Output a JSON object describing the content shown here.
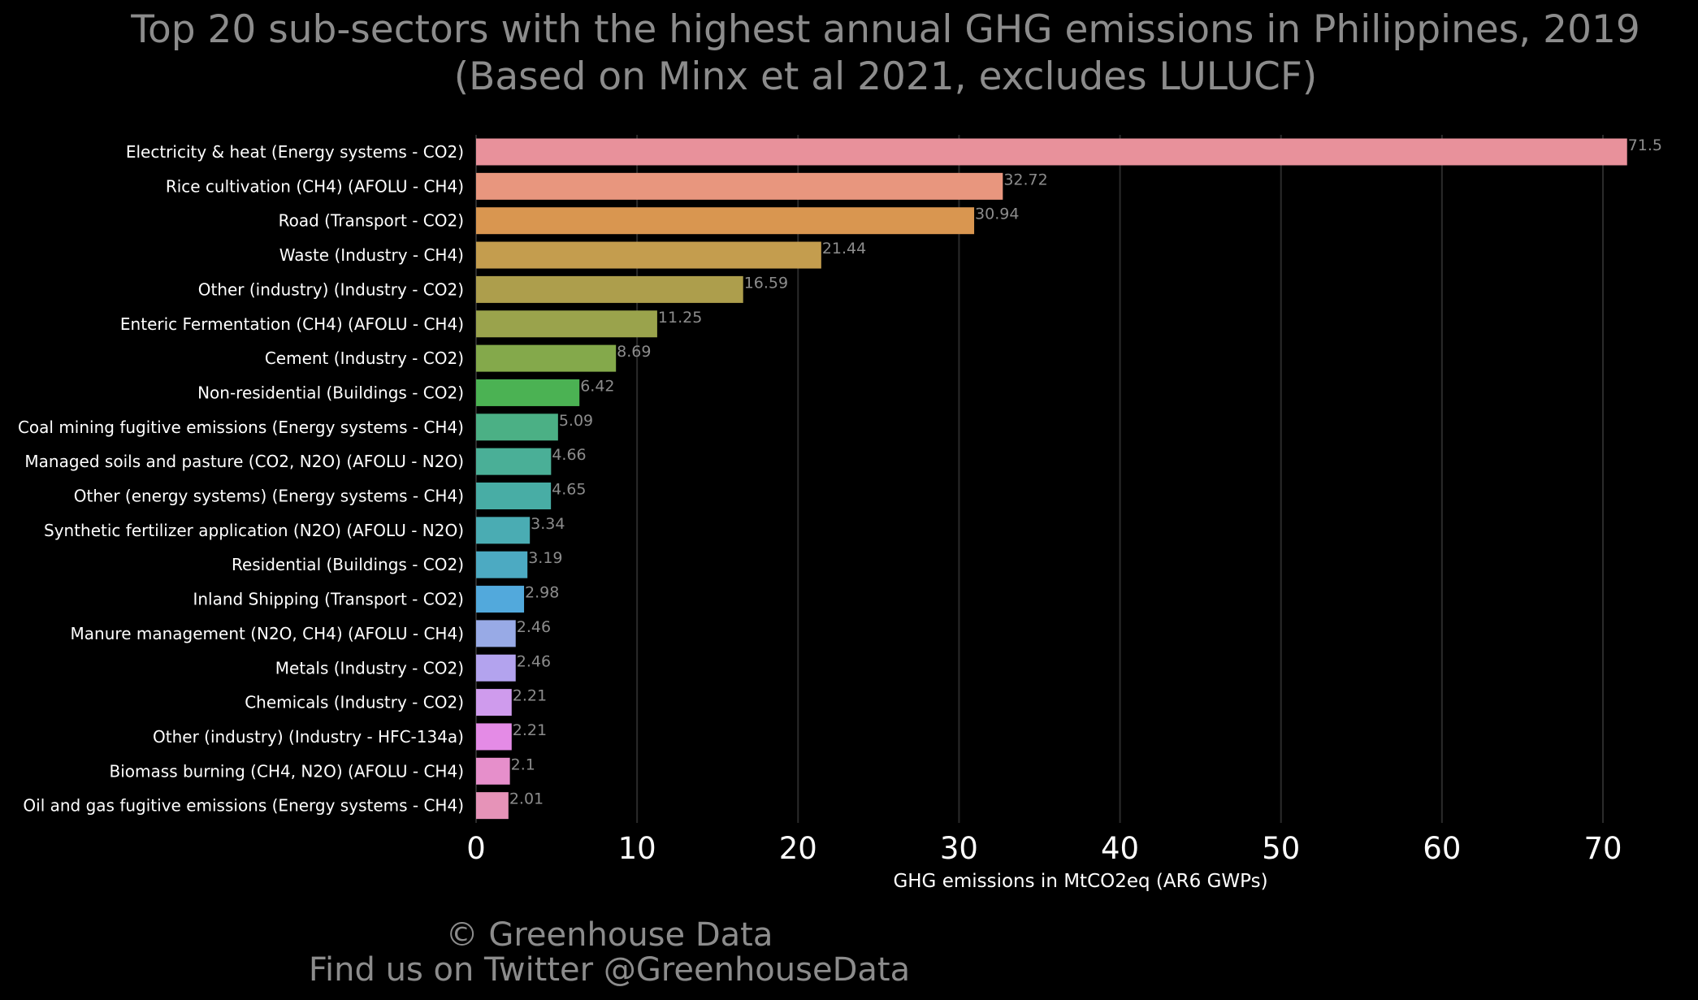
{
  "title": {
    "line1": "Top 20 sub-sectors with the highest annual GHG emissions in Philippines, 2019",
    "line2": "(Based on Minx et al 2021, excludes LULUCF)"
  },
  "footer": {
    "line1": "© Greenhouse Data",
    "line2": "Find us on Twitter @GreenhouseData"
  },
  "chart_data": {
    "type": "bar",
    "orientation": "horizontal",
    "categories": [
      "Electricity & heat (Energy systems - CO2)",
      "Rice cultivation (CH4) (AFOLU - CH4)",
      "Road (Transport - CO2)",
      "Waste (Industry - CH4)",
      "Other (industry) (Industry - CO2)",
      "Enteric Fermentation (CH4) (AFOLU - CH4)",
      "Cement (Industry - CO2)",
      "Non-residential (Buildings - CO2)",
      "Coal mining fugitive emissions (Energy systems - CH4)",
      "Managed soils and pasture (CO2, N2O) (AFOLU - N2O)",
      "Other (energy systems) (Energy systems - CH4)",
      "Synthetic fertilizer application (N2O) (AFOLU - N2O)",
      "Residential (Buildings - CO2)",
      "Inland Shipping (Transport - CO2)",
      "Manure management (N2O, CH4) (AFOLU - CH4)",
      "Metals (Industry - CO2)",
      "Chemicals (Industry - CO2)",
      "Other (industry) (Industry - HFC-134a)",
      "Biomass burning (CH4, N2O) (AFOLU - CH4)",
      "Oil and gas fugitive emissions (Energy systems - CH4)"
    ],
    "values": [
      71.5,
      32.72,
      30.94,
      21.44,
      16.59,
      11.25,
      8.69,
      6.42,
      5.09,
      4.66,
      4.65,
      3.34,
      3.19,
      2.98,
      2.46,
      2.46,
      2.21,
      2.21,
      2.1,
      2.01
    ],
    "value_labels": [
      "71.5",
      "32.72",
      "30.94",
      "21.44",
      "16.59",
      "11.25",
      "8.69",
      "6.42",
      "5.09",
      "4.66",
      "4.65",
      "3.34",
      "3.19",
      "2.98",
      "2.46",
      "2.46",
      "2.21",
      "2.21",
      "2.1",
      "2.01"
    ],
    "colors": [
      "#e8919b",
      "#e8967e",
      "#d99650",
      "#c49d4e",
      "#ad9e4c",
      "#9aa34c",
      "#84a94b",
      "#4bb253",
      "#4bb085",
      "#4aaf97",
      "#48ada5",
      "#4aacb3",
      "#4caac2",
      "#52a9dc",
      "#98aae6",
      "#b3a3ee",
      "#cf9bed",
      "#e48be6",
      "#e68fcb",
      "#e693b8"
    ],
    "xlabel": "GHG emissions in MtCO2eq (AR6 GWPs)",
    "ylabel": "",
    "xlim": [
      0,
      72.5
    ],
    "xticks": [
      "0",
      "10",
      "20",
      "30",
      "40",
      "50",
      "60",
      "70"
    ],
    "xtick_values": [
      0,
      10,
      20,
      30,
      40,
      50,
      60,
      70
    ],
    "grid": "vertical",
    "text_color": "#ffffff",
    "label_color": "#8c8c8c",
    "grid_color": "#2b2b2b"
  }
}
